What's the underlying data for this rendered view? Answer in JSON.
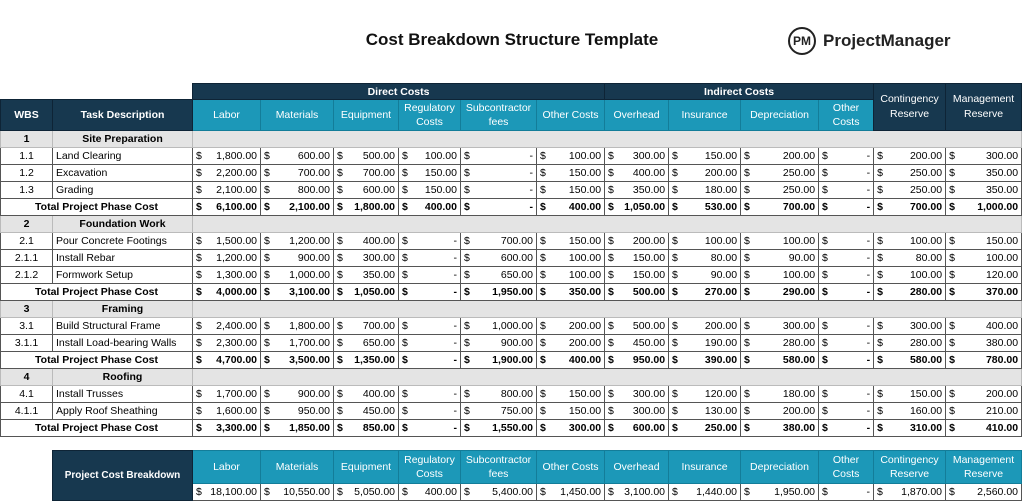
{
  "title": "Cost Breakdown Structure Template",
  "logo": {
    "mark": "PM",
    "name": "ProjectManager"
  },
  "groups": {
    "direct": "Direct Costs",
    "indirect": "Indirect Costs",
    "contingency": "Contingency Reserve",
    "management": "Management Reserve"
  },
  "headers": {
    "wbs": "WBS",
    "task": "Task Description",
    "columns": [
      "Labor",
      "Materials",
      "Equipment",
      "Regulatory Costs",
      "Subcontractor fees",
      "Other Costs",
      "Overhead",
      "Insurance",
      "Depreciation",
      "Other Costs"
    ]
  },
  "currency": "$",
  "total_label": "Total Project Phase Cost",
  "phases": [
    {
      "wbs": "1",
      "name": "Site Preparation",
      "tasks": [
        {
          "wbs": "1.1",
          "name": "Land Clearing",
          "values": [
            "1,800.00",
            "600.00",
            "500.00",
            "100.00",
            "-",
            "100.00",
            "300.00",
            "150.00",
            "200.00",
            "-",
            "200.00",
            "300.00"
          ]
        },
        {
          "wbs": "1.2",
          "name": "Excavation",
          "values": [
            "2,200.00",
            "700.00",
            "700.00",
            "150.00",
            "-",
            "150.00",
            "400.00",
            "200.00",
            "250.00",
            "-",
            "250.00",
            "350.00"
          ]
        },
        {
          "wbs": "1.3",
          "name": "Grading",
          "values": [
            "2,100.00",
            "800.00",
            "600.00",
            "150.00",
            "-",
            "150.00",
            "350.00",
            "180.00",
            "250.00",
            "-",
            "250.00",
            "350.00"
          ]
        }
      ],
      "total": [
        "6,100.00",
        "2,100.00",
        "1,800.00",
        "400.00",
        "-",
        "400.00",
        "1,050.00",
        "530.00",
        "700.00",
        "-",
        "700.00",
        "1,000.00"
      ]
    },
    {
      "wbs": "2",
      "name": "Foundation Work",
      "tasks": [
        {
          "wbs": "2.1",
          "name": "Pour Concrete Footings",
          "values": [
            "1,500.00",
            "1,200.00",
            "400.00",
            "-",
            "700.00",
            "150.00",
            "200.00",
            "100.00",
            "100.00",
            "-",
            "100.00",
            "150.00"
          ]
        },
        {
          "wbs": "2.1.1",
          "name": "Install Rebar",
          "values": [
            "1,200.00",
            "900.00",
            "300.00",
            "-",
            "600.00",
            "100.00",
            "150.00",
            "80.00",
            "90.00",
            "-",
            "80.00",
            "100.00"
          ]
        },
        {
          "wbs": "2.1.2",
          "name": "Formwork Setup",
          "values": [
            "1,300.00",
            "1,000.00",
            "350.00",
            "-",
            "650.00",
            "100.00",
            "150.00",
            "90.00",
            "100.00",
            "-",
            "100.00",
            "120.00"
          ]
        }
      ],
      "total": [
        "4,000.00",
        "3,100.00",
        "1,050.00",
        "-",
        "1,950.00",
        "350.00",
        "500.00",
        "270.00",
        "290.00",
        "-",
        "280.00",
        "370.00"
      ]
    },
    {
      "wbs": "3",
      "name": "Framing",
      "tasks": [
        {
          "wbs": "3.1",
          "name": "Build Structural Frame",
          "values": [
            "2,400.00",
            "1,800.00",
            "700.00",
            "-",
            "1,000.00",
            "200.00",
            "500.00",
            "200.00",
            "300.00",
            "-",
            "300.00",
            "400.00"
          ]
        },
        {
          "wbs": "3.1.1",
          "name": "Install Load-bearing Walls",
          "values": [
            "2,300.00",
            "1,700.00",
            "650.00",
            "-",
            "900.00",
            "200.00",
            "450.00",
            "190.00",
            "280.00",
            "-",
            "280.00",
            "380.00"
          ]
        }
      ],
      "total": [
        "4,700.00",
        "3,500.00",
        "1,350.00",
        "-",
        "1,900.00",
        "400.00",
        "950.00",
        "390.00",
        "580.00",
        "-",
        "580.00",
        "780.00"
      ]
    },
    {
      "wbs": "4",
      "name": "Roofing",
      "tasks": [
        {
          "wbs": "4.1",
          "name": "Install Trusses",
          "values": [
            "1,700.00",
            "900.00",
            "400.00",
            "-",
            "800.00",
            "150.00",
            "300.00",
            "120.00",
            "180.00",
            "-",
            "150.00",
            "200.00"
          ]
        },
        {
          "wbs": "4.1.1",
          "name": "Apply Roof Sheathing",
          "values": [
            "1,600.00",
            "950.00",
            "450.00",
            "-",
            "750.00",
            "150.00",
            "300.00",
            "130.00",
            "200.00",
            "-",
            "160.00",
            "210.00"
          ]
        }
      ],
      "total": [
        "3,300.00",
        "1,850.00",
        "850.00",
        "-",
        "1,550.00",
        "300.00",
        "600.00",
        "250.00",
        "380.00",
        "-",
        "310.00",
        "410.00"
      ]
    }
  ],
  "summary": {
    "label": "Project Cost Breakdown",
    "columns": [
      "Labor",
      "Materials",
      "Equipment",
      "Regulatory Costs",
      "Subcontractor fees",
      "Other Costs",
      "Overhead",
      "Insurance",
      "Depreciation",
      "Other Costs",
      "Contingency Reserve",
      "Management Reserve"
    ],
    "values": [
      "18,100.00",
      "10,550.00",
      "5,050.00",
      "400.00",
      "5,400.00",
      "1,450.00",
      "3,100.00",
      "1,440.00",
      "1,950.00",
      "-",
      "1,870.00",
      "2,560.00"
    ]
  },
  "colors": {
    "dark": "#17384f",
    "teal": "#1c98b8",
    "phase_row": "#e4e4e4"
  }
}
